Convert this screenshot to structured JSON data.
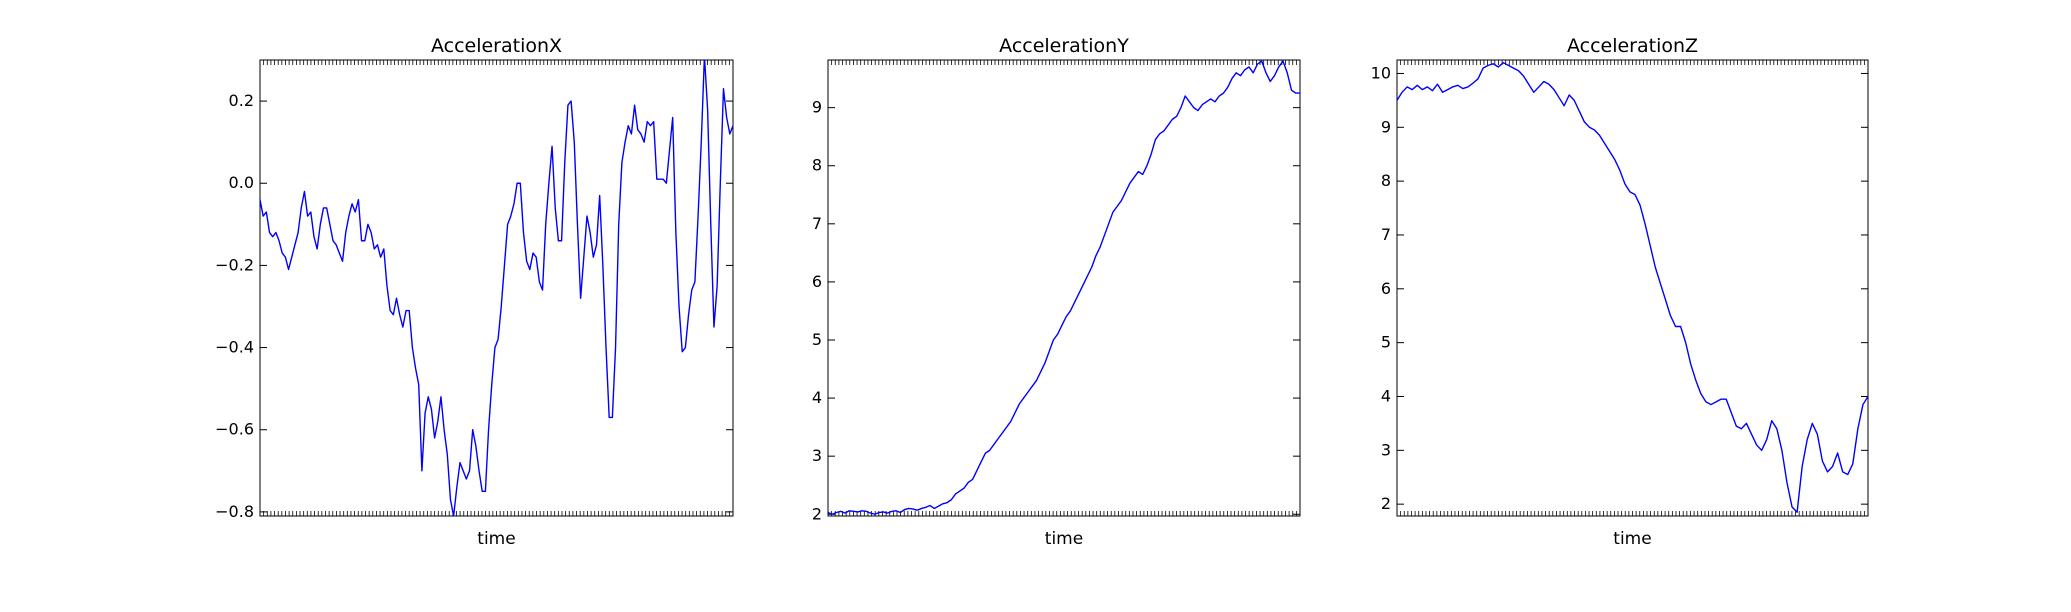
{
  "colors": {
    "line": "#0000ff",
    "axes": "#000000",
    "background": "#ffffff"
  },
  "chart_data": [
    {
      "type": "line",
      "title": "AccelerationX",
      "xlabel": "time",
      "ylabel": "",
      "xlim": [
        0,
        200
      ],
      "ylim": [
        -0.81,
        0.3
      ],
      "yticks": [
        0.2,
        0.0,
        -0.2,
        -0.4,
        -0.6,
        -0.8
      ],
      "ytick_labels": [
        "0.2",
        "0.0",
        "−0.2",
        "−0.4",
        "−0.6",
        "−0.8"
      ],
      "grid": false,
      "series": [
        {
          "values": [
            -0.04,
            -0.08,
            -0.07,
            -0.12,
            -0.13,
            -0.12,
            -0.14,
            -0.17,
            -0.18,
            -0.21,
            -0.18,
            -0.15,
            -0.12,
            -0.06,
            -0.02,
            -0.08,
            -0.07,
            -0.13,
            -0.16,
            -0.1,
            -0.06,
            -0.06,
            -0.1,
            -0.14,
            -0.15,
            -0.17,
            -0.19,
            -0.12,
            -0.08,
            -0.05,
            -0.07,
            -0.04,
            -0.14,
            -0.14,
            -0.1,
            -0.12,
            -0.16,
            -0.15,
            -0.18,
            -0.16,
            -0.25,
            -0.31,
            -0.32,
            -0.28,
            -0.32,
            -0.35,
            -0.31,
            -0.31,
            -0.4,
            -0.45,
            -0.49,
            -0.7,
            -0.56,
            -0.52,
            -0.55,
            -0.62,
            -0.58,
            -0.52,
            -0.6,
            -0.66,
            -0.77,
            -0.81,
            -0.74,
            -0.68,
            -0.7,
            -0.72,
            -0.7,
            -0.6,
            -0.64,
            -0.7,
            -0.75,
            -0.75,
            -0.6,
            -0.49,
            -0.4,
            -0.38,
            -0.3,
            -0.2,
            -0.1,
            -0.08,
            -0.05,
            0.0,
            0.0,
            -0.12,
            -0.19,
            -0.21,
            -0.17,
            -0.18,
            -0.24,
            -0.26,
            -0.1,
            0.0,
            0.09,
            -0.06,
            -0.14,
            -0.14,
            0.05,
            0.19,
            0.2,
            0.1,
            -0.1,
            -0.28,
            -0.18,
            -0.08,
            -0.12,
            -0.18,
            -0.15,
            -0.03,
            -0.2,
            -0.4,
            -0.57,
            -0.57,
            -0.4,
            -0.1,
            0.05,
            0.1,
            0.14,
            0.12,
            0.19,
            0.13,
            0.12,
            0.1,
            0.15,
            0.14,
            0.15,
            0.01,
            0.01,
            0.01,
            0.0,
            0.08,
            0.16,
            -0.12,
            -0.3,
            -0.41,
            -0.4,
            -0.32,
            -0.26,
            -0.24,
            -0.08,
            0.1,
            0.31,
            0.18,
            -0.1,
            -0.35,
            -0.25,
            0.0,
            0.23,
            0.16,
            0.12,
            0.14
          ]
        }
      ]
    },
    {
      "type": "line",
      "title": "AccelerationY",
      "xlabel": "time",
      "ylabel": "",
      "xlim": [
        0,
        200
      ],
      "ylim": [
        1.97,
        9.82
      ],
      "yticks": [
        9,
        8,
        7,
        6,
        5,
        4,
        3,
        2
      ],
      "ytick_labels": [
        "9",
        "8",
        "7",
        "6",
        "5",
        "4",
        "3",
        "2"
      ],
      "grid": false,
      "series": [
        {
          "values": [
            2.03,
            2.0,
            2.03,
            2.05,
            2.02,
            2.06,
            2.05,
            2.04,
            2.06,
            2.05,
            2.02,
            2.0,
            2.03,
            2.04,
            2.02,
            2.05,
            2.06,
            2.03,
            2.08,
            2.1,
            2.09,
            2.07,
            2.1,
            2.12,
            2.15,
            2.1,
            2.14,
            2.18,
            2.2,
            2.25,
            2.35,
            2.4,
            2.45,
            2.55,
            2.6,
            2.75,
            2.9,
            3.05,
            3.1,
            3.2,
            3.3,
            3.4,
            3.5,
            3.6,
            3.75,
            3.9,
            4.0,
            4.1,
            4.2,
            4.3,
            4.45,
            4.6,
            4.8,
            5.0,
            5.1,
            5.25,
            5.4,
            5.5,
            5.65,
            5.8,
            5.95,
            6.1,
            6.25,
            6.45,
            6.6,
            6.8,
            7.0,
            7.2,
            7.3,
            7.4,
            7.55,
            7.7,
            7.8,
            7.9,
            7.85,
            8.0,
            8.2,
            8.45,
            8.55,
            8.6,
            8.7,
            8.8,
            8.85,
            9.0,
            9.2,
            9.1,
            9.0,
            8.95,
            9.05,
            9.1,
            9.15,
            9.1,
            9.2,
            9.25,
            9.35,
            9.5,
            9.6,
            9.55,
            9.65,
            9.7,
            9.6,
            9.75,
            9.8,
            9.6,
            9.45,
            9.55,
            9.7,
            9.8,
            9.6,
            9.3,
            9.25,
            9.25
          ]
        }
      ]
    },
    {
      "type": "line",
      "title": "AccelerationZ",
      "xlabel": "time",
      "ylabel": "",
      "xlim": [
        0,
        200
      ],
      "ylim": [
        1.78,
        10.25
      ],
      "yticks": [
        10,
        9,
        8,
        7,
        6,
        5,
        4,
        3,
        2
      ],
      "ytick_labels": [
        "10",
        "9",
        "8",
        "7",
        "6",
        "5",
        "4",
        "3",
        "2"
      ],
      "grid": false,
      "series": [
        {
          "values": [
            9.5,
            9.65,
            9.75,
            9.7,
            9.78,
            9.7,
            9.75,
            9.68,
            9.8,
            9.65,
            9.7,
            9.75,
            9.78,
            9.72,
            9.75,
            9.82,
            9.9,
            10.1,
            10.15,
            10.18,
            10.12,
            10.2,
            10.15,
            10.1,
            10.05,
            9.95,
            9.8,
            9.65,
            9.75,
            9.85,
            9.8,
            9.7,
            9.55,
            9.4,
            9.6,
            9.5,
            9.3,
            9.1,
            9.0,
            8.95,
            8.85,
            8.7,
            8.55,
            8.4,
            8.2,
            7.95,
            7.8,
            7.75,
            7.55,
            7.2,
            6.8,
            6.4,
            6.1,
            5.8,
            5.5,
            5.3,
            5.3,
            5.0,
            4.6,
            4.3,
            4.05,
            3.9,
            3.85,
            3.9,
            3.95,
            3.95,
            3.7,
            3.45,
            3.4,
            3.5,
            3.3,
            3.1,
            3.0,
            3.2,
            3.55,
            3.4,
            3.0,
            2.4,
            1.95,
            1.85,
            2.7,
            3.2,
            3.5,
            3.3,
            2.8,
            2.6,
            2.7,
            2.95,
            2.6,
            2.55,
            2.75,
            3.4,
            3.85,
            4.0
          ]
        }
      ]
    }
  ]
}
